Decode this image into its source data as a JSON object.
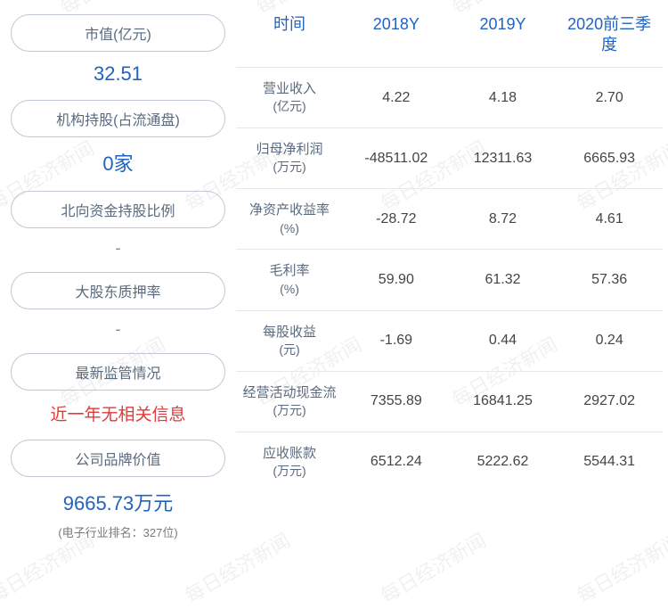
{
  "watermark_text": "每日经济新闻",
  "left": {
    "items": [
      {
        "label": "市值(亿元)",
        "value": "32.51",
        "value_class": ""
      },
      {
        "label": "机构持股(占流通盘)",
        "value": "0家",
        "value_class": ""
      },
      {
        "label": "北向资金持股比例",
        "value": "-",
        "value_class": "dash"
      },
      {
        "label": "大股东质押率",
        "value": "-",
        "value_class": "dash"
      },
      {
        "label": "最新监管情况",
        "value": "近一年无相关信息",
        "value_class": "red"
      },
      {
        "label": "公司品牌价值",
        "value": "9665.73万元",
        "value_class": "",
        "sub": "(电子行业排名：327位)"
      }
    ]
  },
  "table": {
    "headers": [
      "时间",
      "2018Y",
      "2019Y",
      "2020前三季度"
    ],
    "rows": [
      {
        "metric": "营业收入",
        "unit": "(亿元)",
        "cells": [
          "4.22",
          "4.18",
          "2.70"
        ]
      },
      {
        "metric": "归母净利润",
        "unit": "(万元)",
        "cells": [
          "-48511.02",
          "12311.63",
          "6665.93"
        ]
      },
      {
        "metric": "净资产收益率",
        "unit": "(%)",
        "cells": [
          "-28.72",
          "8.72",
          "4.61"
        ]
      },
      {
        "metric": "毛利率",
        "unit": "(%)",
        "cells": [
          "59.90",
          "61.32",
          "57.36"
        ]
      },
      {
        "metric": "每股收益",
        "unit": "(元)",
        "cells": [
          "-1.69",
          "0.44",
          "0.24"
        ]
      },
      {
        "metric": "经营活动现金流",
        "unit": "(万元)",
        "cells": [
          "7355.89",
          "16841.25",
          "2927.02"
        ]
      },
      {
        "metric": "应收账款",
        "unit": "(万元)",
        "cells": [
          "6512.24",
          "5222.62",
          "5544.31"
        ]
      }
    ]
  },
  "colors": {
    "accent": "#2263c1",
    "pill_border": "#bfc8d4",
    "label_text": "#5a6a7e",
    "red": "#e03a3a",
    "row_border": "#e8e8e8"
  }
}
